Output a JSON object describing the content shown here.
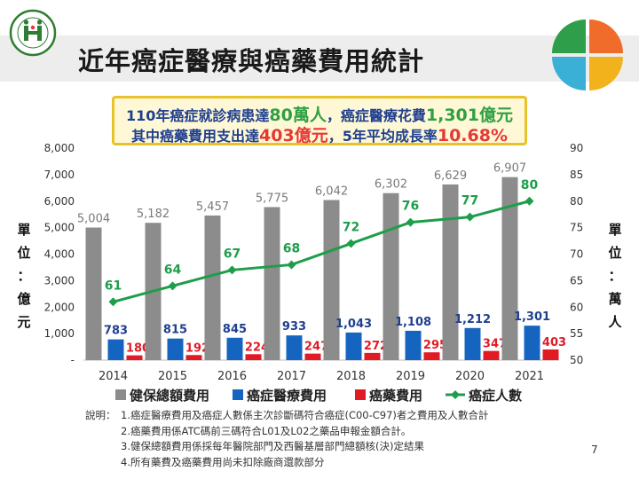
{
  "title": "近年癌症醫療與癌藥費用統計",
  "highlight": {
    "line1_a": "110年癌症就診病患達",
    "line1_b": "80萬人",
    "line1_c": "，癌症醫療花費",
    "line1_d": "1,301億元",
    "line2_a": "其中癌藥費用支出達",
    "line2_b": "403億元",
    "line2_c": "，5年平均成長率",
    "line2_d": "10.68%"
  },
  "y_left_title": [
    "單",
    "位",
    "：",
    "億",
    "元"
  ],
  "y_right_title": [
    "單",
    "位",
    "：",
    "萬",
    "人"
  ],
  "page_number": "7",
  "notes": {
    "label": "說明：",
    "items": [
      "1.癌症醫療費用及癌症人數係主次診斷碼符合癌症(C00-C97)者之費用及人數合計",
      "2.癌藥費用係ATC碼前三碼符合L01及L02之藥品申報金額合計。",
      "3.健保總額費用係採每年醫院部門及西醫基層部門總額核(決)定結果",
      "4.所有藥費及癌藥費用尚未扣除廠商還款部分"
    ]
  },
  "colors": {
    "total": "#8c8c8c",
    "medical": "#1565c0",
    "drug": "#e01b24",
    "patients": "#1e9e4a",
    "medical_label": "#1f3f8f",
    "drug_label": "#e01b24",
    "patients_label": "#1e9e4a",
    "total_label": "#7a7a7a"
  },
  "chart_data": {
    "type": "bar",
    "categories": [
      "2014",
      "2015",
      "2016",
      "2017",
      "2018",
      "2019",
      "2020",
      "2021"
    ],
    "series": [
      {
        "name": "健保總額費用",
        "type": "bar",
        "axis": "left",
        "values": [
          5004,
          5182,
          5457,
          5775,
          6042,
          6302,
          6629,
          6907
        ],
        "labels": [
          "5,004",
          "5,182",
          "5,457",
          "5,775",
          "6,042",
          "6,302",
          "6,629",
          "6,907"
        ]
      },
      {
        "name": "癌症醫療費用",
        "type": "bar",
        "axis": "left",
        "values": [
          783,
          815,
          845,
          933,
          1043,
          1108,
          1212,
          1301
        ],
        "labels": [
          "783",
          "815",
          "845",
          "933",
          "1,043",
          "1,108",
          "1,212",
          "1,301"
        ]
      },
      {
        "name": "癌藥費用",
        "type": "bar",
        "axis": "left",
        "values": [
          180,
          192,
          224,
          247,
          272,
          295,
          347,
          403
        ],
        "labels": [
          "180",
          "192",
          "224",
          "247",
          "272",
          "295",
          "347",
          "403"
        ]
      },
      {
        "name": "癌症人數",
        "type": "line",
        "axis": "right",
        "values": [
          61,
          64,
          67,
          68,
          72,
          76,
          77,
          80
        ],
        "labels": [
          "61",
          "64",
          "67",
          "68",
          "72",
          "76",
          "77",
          "80"
        ]
      }
    ],
    "y_left": {
      "min": 0,
      "max": 8000,
      "step": 1000,
      "ticks": [
        "-",
        "1,000",
        "2,000",
        "3,000",
        "4,000",
        "5,000",
        "6,000",
        "7,000",
        "8,000"
      ]
    },
    "y_right": {
      "min": 50,
      "max": 90,
      "step": 5,
      "ticks": [
        "50",
        "55",
        "60",
        "65",
        "70",
        "75",
        "80",
        "85",
        "90"
      ]
    },
    "legend": [
      "健保總額費用",
      "癌症醫療費用",
      "癌藥費用",
      "癌症人數"
    ],
    "legend_position": "bottom"
  }
}
